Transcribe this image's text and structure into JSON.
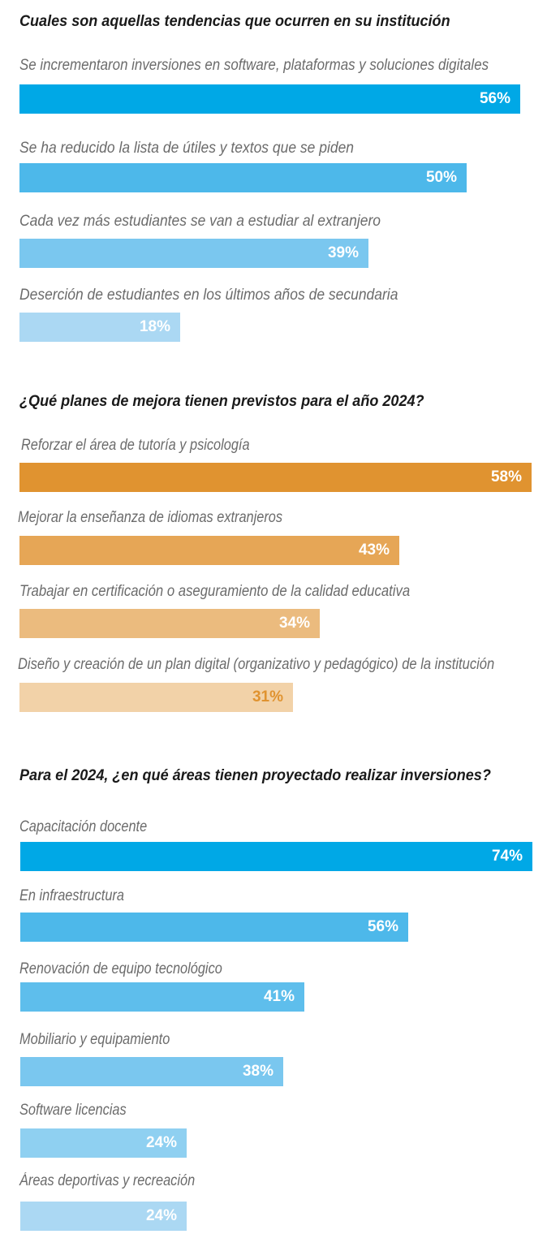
{
  "chart_data": [
    {
      "type": "bar",
      "orientation": "horizontal",
      "title": "Cuales son aquellas tendencias que ocurren en su institución",
      "categories": [
        "Se incrementaron inversiones en software, plataformas y soluciones digitales",
        "Se ha reducido la lista de útiles y textos que se piden",
        "Cada vez más estudiantes se van a estudiar al extranjero",
        "Deserción de estudiantes en los últimos años de secundaria"
      ],
      "values": [
        56,
        50,
        39,
        18
      ],
      "value_labels": [
        "56%",
        "50%",
        "39%",
        "18%"
      ],
      "unit": "%",
      "colors": [
        "#00a8e6",
        "#4db8ea",
        "#7ac7ef",
        "#abd8f3"
      ],
      "value_colors": [
        "#ffffff",
        "#ffffff",
        "#ffffff",
        "#ffffff"
      ]
    },
    {
      "type": "bar",
      "orientation": "horizontal",
      "title": "¿Qué planes de mejora tienen previstos para el año 2024?",
      "categories": [
        "Reforzar el área de tutoría y psicología",
        "Mejorar la enseñanza de idiomas extranjeros",
        "Trabajar en certificación o aseguramiento de la calidad educativa",
        "Diseño y creación de un plan digital (organizativo y pedagógico) de la institución"
      ],
      "values": [
        58,
        43,
        34,
        31
      ],
      "value_labels": [
        "58%",
        "43%",
        "34%",
        "31%"
      ],
      "unit": "%",
      "colors": [
        "#e09330",
        "#e6a656",
        "#ebbb7e",
        "#f2d2a8"
      ],
      "value_colors": [
        "#ffffff",
        "#ffffff",
        "#ffffff",
        "#e09330"
      ]
    },
    {
      "type": "bar",
      "orientation": "horizontal",
      "title": "Para el 2024, ¿en qué áreas tienen proyectado realizar inversiones?",
      "categories": [
        "Capacitación docente",
        "En infraestructura",
        "Renovación de equipo tecnológico",
        "Mobiliario y equipamiento",
        "Software licencias",
        "Áreas deportivas y recreación"
      ],
      "values": [
        74,
        56,
        41,
        38,
        24,
        24
      ],
      "value_labels": [
        "74%",
        "56%",
        "41%",
        "38%",
        "24%",
        "24%"
      ],
      "unit": "%",
      "colors": [
        "#00a8e6",
        "#4db8ea",
        "#5ebeec",
        "#7ac7ef",
        "#8fd0f1",
        "#abd8f3"
      ],
      "value_colors": [
        "#ffffff",
        "#ffffff",
        "#ffffff",
        "#ffffff",
        "#ffffff",
        "#ffffff"
      ]
    }
  ]
}
